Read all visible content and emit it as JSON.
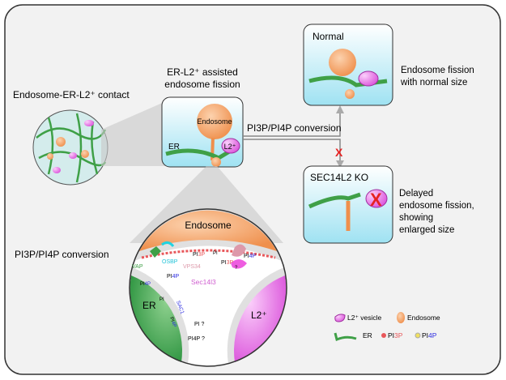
{
  "labels": {
    "contact": "Endosome-ER-L2⁺ contact",
    "assisted_line1": "ER-L2⁺ assisted",
    "assisted_line2": "endosome fission",
    "conversion_top": "PI3P/PI4P conversion",
    "conversion_left": "PI3P/PI4P conversion",
    "normal_title": "Normal",
    "normal_desc_line1": "Endosome fission",
    "normal_desc_line2": "with normal size",
    "ko_title": "SEC14L2 KO",
    "ko_desc_line1": "Delayed",
    "ko_desc_line2": "endosome fission,",
    "ko_desc_line3": "showing",
    "ko_desc_line4": "enlarged size",
    "block_mark": "X",
    "box_endosome": "Endosome",
    "box_er": "ER",
    "box_l2": "L2⁺"
  },
  "zoom_circle": {
    "endosome": "Endosome",
    "er": "ER",
    "l2": "L2⁺",
    "vap": "VAP",
    "osbp": "OSBP",
    "vps34": "VPS34",
    "sec14l3": "Sec14l3",
    "sac1": "SAC1",
    "pi": "PI",
    "pi_q": "PI ?",
    "pi3p_prefix": "PI",
    "pi3p_suffix": "3P",
    "pi4p_prefix": "PI",
    "pi4p_suffix": "4P",
    "q": "?",
    "pi4p_q": "PI4P ?"
  },
  "legend": {
    "l2_vesicle": "L2⁺ vesicle",
    "endosome": "Endosome",
    "er": "ER",
    "pi3p_prefix": "PI",
    "pi3p_suffix": "3P",
    "pi4p_prefix": "PI",
    "pi4p_suffix": "4P"
  },
  "colors": {
    "endosome": "#f5a66a",
    "er": "#3fa047",
    "l2": "#e65ce6",
    "pi3p": "#e8575a",
    "pi4p": "#2a2ae0",
    "block": "#e52222",
    "box_bg": "#cdeef6",
    "panel_bg": "#f2f2f2"
  }
}
